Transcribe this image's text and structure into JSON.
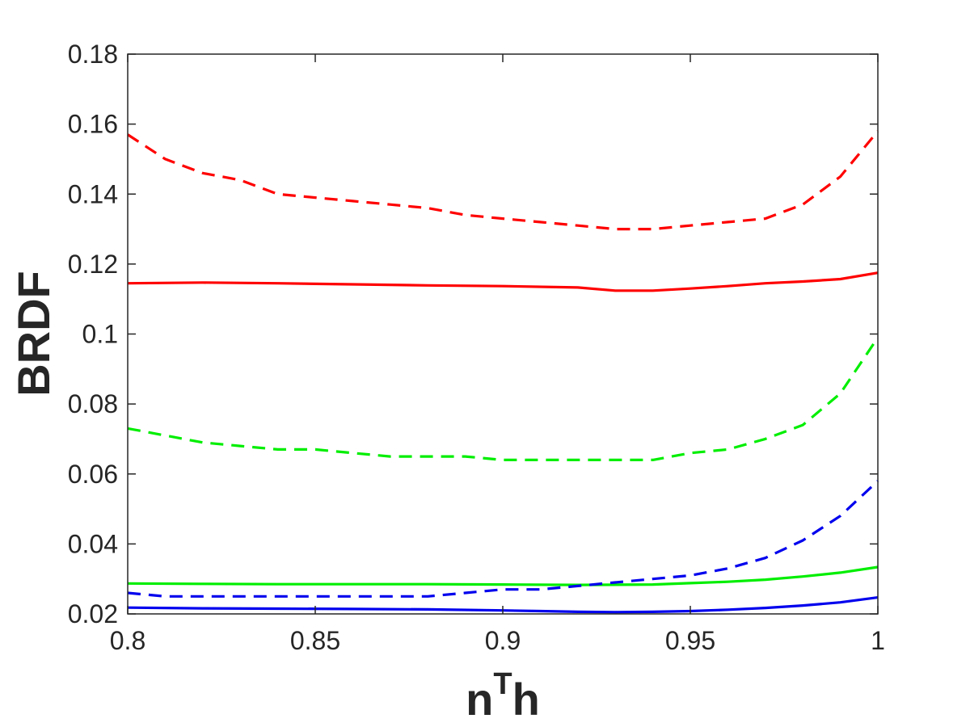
{
  "chart_data": {
    "type": "line",
    "title": "",
    "xlabel_base": "n",
    "xlabel_sup": "T",
    "xlabel_tail": "h",
    "ylabel": "BRDF",
    "xlim": [
      0.8,
      1.0
    ],
    "ylim": [
      0.02,
      0.18
    ],
    "grid": false,
    "x_ticks": [
      0.8,
      0.85,
      0.9,
      0.95,
      1.0
    ],
    "x_tick_labels": [
      "0.8",
      "0.85",
      "0.9",
      "0.95",
      "1"
    ],
    "y_ticks": [
      0.02,
      0.04,
      0.06,
      0.08,
      0.1,
      0.12,
      0.14,
      0.16,
      0.18
    ],
    "y_tick_labels": [
      "0.02",
      "0.04",
      "0.06",
      "0.08",
      "0.1",
      "0.12",
      "0.14",
      "0.16",
      "0.18"
    ],
    "series": [
      {
        "color": "#ff0000",
        "style": "dashed",
        "x": [
          0.8,
          0.81,
          0.82,
          0.83,
          0.84,
          0.85,
          0.86,
          0.87,
          0.88,
          0.89,
          0.9,
          0.91,
          0.92,
          0.93,
          0.94,
          0.95,
          0.96,
          0.97,
          0.98,
          0.99,
          1.0
        ],
        "y": [
          0.157,
          0.15,
          0.146,
          0.144,
          0.14,
          0.139,
          0.138,
          0.137,
          0.136,
          0.134,
          0.133,
          0.132,
          0.131,
          0.13,
          0.13,
          0.131,
          0.132,
          0.133,
          0.137,
          0.145,
          0.158
        ]
      },
      {
        "color": "#ff0000",
        "style": "solid",
        "x": [
          0.8,
          0.82,
          0.84,
          0.86,
          0.88,
          0.9,
          0.92,
          0.93,
          0.94,
          0.95,
          0.96,
          0.97,
          0.98,
          0.99,
          1.0
        ],
        "y": [
          0.1145,
          0.1147,
          0.1145,
          0.1142,
          0.1139,
          0.1137,
          0.1133,
          0.1124,
          0.1124,
          0.113,
          0.1137,
          0.1145,
          0.115,
          0.1157,
          0.1175
        ]
      },
      {
        "color": "#00ee00",
        "style": "dashed",
        "x": [
          0.8,
          0.81,
          0.82,
          0.83,
          0.84,
          0.85,
          0.86,
          0.87,
          0.88,
          0.89,
          0.9,
          0.91,
          0.92,
          0.93,
          0.94,
          0.95,
          0.96,
          0.97,
          0.98,
          0.99,
          1.0
        ],
        "y": [
          0.073,
          0.071,
          0.069,
          0.068,
          0.067,
          0.067,
          0.066,
          0.065,
          0.065,
          0.065,
          0.064,
          0.064,
          0.064,
          0.064,
          0.064,
          0.066,
          0.067,
          0.07,
          0.074,
          0.083,
          0.099
        ]
      },
      {
        "color": "#00ee00",
        "style": "solid",
        "x": [
          0.8,
          0.82,
          0.84,
          0.86,
          0.88,
          0.9,
          0.92,
          0.94,
          0.95,
          0.96,
          0.97,
          0.98,
          0.99,
          1.0
        ],
        "y": [
          0.0287,
          0.0286,
          0.0285,
          0.0285,
          0.0285,
          0.0284,
          0.0283,
          0.0284,
          0.0288,
          0.0292,
          0.0298,
          0.0307,
          0.0318,
          0.0334
        ]
      },
      {
        "color": "#0000ee",
        "style": "dashed",
        "x": [
          0.8,
          0.81,
          0.82,
          0.83,
          0.84,
          0.85,
          0.86,
          0.87,
          0.88,
          0.89,
          0.9,
          0.91,
          0.92,
          0.93,
          0.94,
          0.95,
          0.96,
          0.97,
          0.98,
          0.99,
          1.0
        ],
        "y": [
          0.026,
          0.025,
          0.025,
          0.025,
          0.025,
          0.025,
          0.025,
          0.025,
          0.025,
          0.026,
          0.027,
          0.027,
          0.028,
          0.029,
          0.03,
          0.031,
          0.033,
          0.036,
          0.041,
          0.048,
          0.058
        ]
      },
      {
        "color": "#0000ee",
        "style": "solid",
        "x": [
          0.8,
          0.82,
          0.84,
          0.86,
          0.88,
          0.9,
          0.91,
          0.92,
          0.93,
          0.94,
          0.95,
          0.96,
          0.97,
          0.98,
          0.99,
          1.0
        ],
        "y": [
          0.0218,
          0.0216,
          0.0215,
          0.0214,
          0.0213,
          0.021,
          0.0208,
          0.0206,
          0.0205,
          0.0206,
          0.0208,
          0.0212,
          0.0217,
          0.0224,
          0.0233,
          0.0247
        ]
      }
    ]
  }
}
